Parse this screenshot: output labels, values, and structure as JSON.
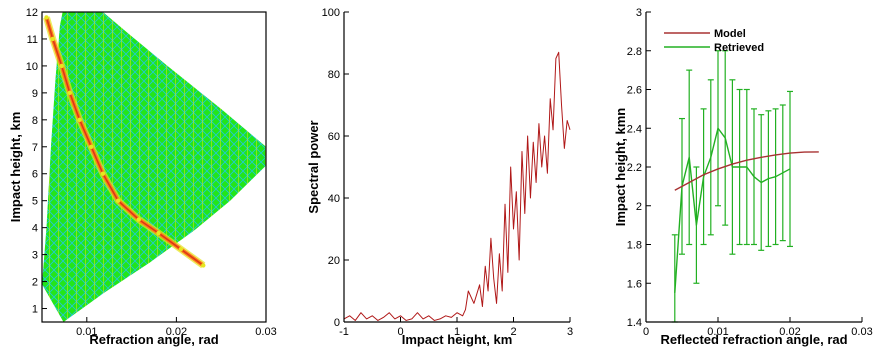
{
  "chart_data": [
    {
      "type": "heatmap",
      "xlabel": "Refraction angle, rad",
      "ylabel": "Impact height, km",
      "xlim": [
        0.005,
        0.03
      ],
      "ylim": [
        0.5,
        12
      ],
      "xticks": [
        0.01,
        0.02,
        0.03
      ],
      "xtick_labels": [
        "0.01",
        "0.02",
        "0.03"
      ],
      "yticks": [
        1,
        2,
        3,
        4,
        5,
        6,
        7,
        8,
        9,
        10,
        11,
        12
      ],
      "ytick_labels": [
        "1",
        "2",
        "3",
        "4",
        "5",
        "6",
        "7",
        "8",
        "9",
        "10",
        "11",
        "12"
      ],
      "colors": {
        "field": "#22e61a",
        "cyan": "#22c8d2",
        "yellow": "#e6e61e",
        "ridge": "#ff7a1a",
        "ridge_core": "#d83818"
      },
      "field_left_edge": [
        [
          0.005,
          1.9
        ],
        [
          0.0055,
          4.0
        ],
        [
          0.006,
          7.0
        ],
        [
          0.0065,
          9.5
        ],
        [
          0.007,
          11.5
        ],
        [
          0.0073,
          12.0
        ]
      ],
      "field_right_edge": [
        [
          0.0074,
          0.5
        ],
        [
          0.012,
          1.6
        ],
        [
          0.017,
          2.7
        ],
        [
          0.022,
          3.9
        ],
        [
          0.026,
          5.0
        ],
        [
          0.03,
          6.3
        ],
        [
          0.03,
          7.0
        ],
        [
          0.025,
          8.4
        ],
        [
          0.019,
          10.0
        ],
        [
          0.015,
          11.1
        ],
        [
          0.0118,
          12.0
        ]
      ],
      "ridge": [
        {
          "x": 0.0055,
          "y": 11.8
        },
        {
          "x": 0.0062,
          "y": 11.0
        },
        {
          "x": 0.0072,
          "y": 10.0
        },
        {
          "x": 0.0081,
          "y": 9.0
        },
        {
          "x": 0.0092,
          "y": 8.0
        },
        {
          "x": 0.0105,
          "y": 7.0
        },
        {
          "x": 0.0118,
          "y": 6.0
        },
        {
          "x": 0.0135,
          "y": 5.0
        },
        {
          "x": 0.0158,
          "y": 4.3
        },
        {
          "x": 0.018,
          "y": 3.8
        },
        {
          "x": 0.0205,
          "y": 3.2
        },
        {
          "x": 0.023,
          "y": 2.6
        }
      ]
    },
    {
      "type": "line",
      "xlabel": "Impact height, km",
      "ylabel": "Spectral power",
      "xlim": [
        -1,
        3
      ],
      "ylim": [
        0,
        100
      ],
      "xticks": [
        -1,
        0,
        1,
        2,
        3
      ],
      "xtick_labels": [
        "-1",
        "0",
        "1",
        "2",
        "3"
      ],
      "yticks": [
        0,
        20,
        40,
        60,
        80,
        100
      ],
      "ytick_labels": [
        "0",
        "20",
        "40",
        "60",
        "80",
        "100"
      ],
      "series": [
        {
          "color": "#b01818",
          "x": [
            -1.0,
            -0.9,
            -0.8,
            -0.7,
            -0.6,
            -0.5,
            -0.4,
            -0.3,
            -0.2,
            -0.1,
            0.0,
            0.1,
            0.2,
            0.3,
            0.4,
            0.5,
            0.6,
            0.7,
            0.8,
            0.9,
            1.0,
            1.1,
            1.15,
            1.2,
            1.3,
            1.4,
            1.45,
            1.5,
            1.55,
            1.6,
            1.65,
            1.7,
            1.75,
            1.8,
            1.85,
            1.9,
            1.95,
            2.0,
            2.05,
            2.1,
            2.15,
            2.2,
            2.25,
            2.3,
            2.35,
            2.4,
            2.45,
            2.5,
            2.55,
            2.6,
            2.65,
            2.7,
            2.75,
            2.8,
            2.85,
            2.9,
            2.95,
            3.0
          ],
          "y": [
            1,
            2,
            0.5,
            3,
            1,
            2,
            0.5,
            1.5,
            3,
            1,
            2,
            0.5,
            1,
            3,
            1,
            2,
            0.5,
            1,
            2,
            1.5,
            3,
            2,
            4,
            10,
            6,
            12,
            5,
            18,
            10,
            27,
            14,
            6,
            22,
            10,
            38,
            16,
            50,
            30,
            42,
            20,
            55,
            35,
            60,
            40,
            58,
            45,
            64,
            50,
            60,
            48,
            72,
            62,
            85,
            87,
            70,
            56,
            65,
            62
          ]
        }
      ]
    },
    {
      "type": "line",
      "xlabel": "Reflected refraction angle, rad",
      "ylabel": "Impact height, kmn",
      "xlim": [
        0,
        0.03
      ],
      "ylim": [
        1.4,
        3
      ],
      "xticks": [
        0,
        0.01,
        0.02,
        0.03
      ],
      "xtick_labels": [
        "0",
        "0.01",
        "0.02",
        "0.03"
      ],
      "yticks": [
        1.4,
        1.6,
        1.8,
        2,
        2.2,
        2.4,
        2.6,
        2.8,
        3
      ],
      "ytick_labels": [
        "1.4",
        "1.6",
        "1.8",
        "2",
        "2.2",
        "2.4",
        "2.6",
        "2.8",
        "3"
      ],
      "legend": "top-left",
      "series": [
        {
          "name": "Model",
          "color": "#a83232",
          "x": [
            0.004,
            0.006,
            0.008,
            0.01,
            0.012,
            0.014,
            0.016,
            0.018,
            0.02,
            0.022,
            0.024
          ],
          "y": [
            2.08,
            2.12,
            2.16,
            2.19,
            2.215,
            2.235,
            2.25,
            2.262,
            2.272,
            2.277,
            2.278
          ]
        },
        {
          "name": "Retrieved",
          "color": "#22b022",
          "x": [
            0.004,
            0.005,
            0.006,
            0.007,
            0.008,
            0.009,
            0.01,
            0.011,
            0.012,
            0.013,
            0.014,
            0.015,
            0.016,
            0.017,
            0.018,
            0.019,
            0.02
          ],
          "y": [
            1.55,
            2.1,
            2.25,
            1.9,
            2.15,
            2.25,
            2.4,
            2.35,
            2.2,
            2.2,
            2.2,
            2.15,
            2.12,
            2.14,
            2.15,
            2.17,
            2.19
          ],
          "err": [
            0.3,
            0.35,
            0.45,
            0.3,
            0.35,
            0.4,
            0.4,
            0.45,
            0.45,
            0.4,
            0.4,
            0.35,
            0.35,
            0.35,
            0.35,
            0.35,
            0.4
          ]
        }
      ]
    }
  ]
}
